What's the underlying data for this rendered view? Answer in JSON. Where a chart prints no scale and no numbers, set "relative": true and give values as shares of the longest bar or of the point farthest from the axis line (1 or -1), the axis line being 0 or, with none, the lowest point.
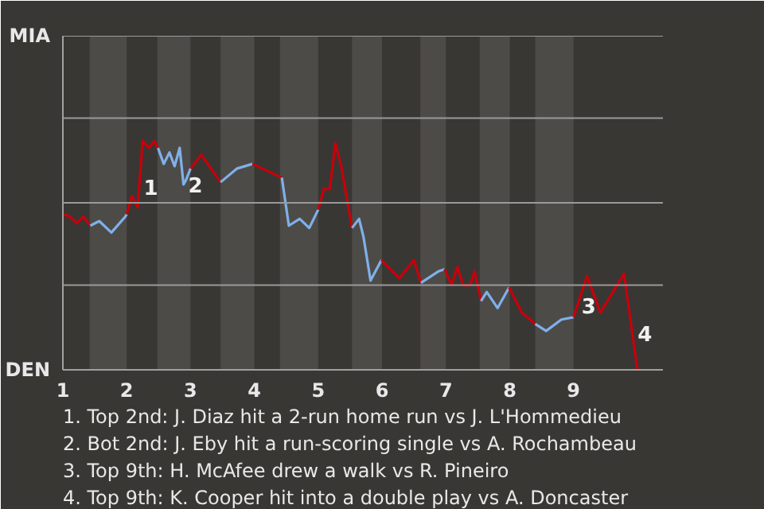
{
  "chart_data": {
    "type": "line",
    "relative": true,
    "xlim": [
      1,
      10.4
    ],
    "xticks": [
      1,
      2,
      3,
      4,
      5,
      6,
      7,
      8,
      9
    ],
    "ref_lines": [
      {
        "axis": "y",
        "value": 0.37,
        "color": "#9a9a9a"
      },
      {
        "axis": "y",
        "value": 0.73,
        "color": "#9a9a9a"
      },
      {
        "axis": "y",
        "value": 1.1,
        "color": "#9a9a9a"
      },
      {
        "axis": "y",
        "value": 1.46,
        "color": "#9a9a9a"
      }
    ],
    "line_style": "solid",
    "bands": [
      {
        "axis": "x",
        "from": 1.42,
        "to": 2.0,
        "color": "#4d4b48"
      },
      {
        "axis": "x",
        "from": 2.48,
        "to": 3.0,
        "color": "#4d4b48"
      },
      {
        "axis": "x",
        "from": 3.47,
        "to": 4.0,
        "color": "#4d4b48"
      },
      {
        "axis": "x",
        "from": 4.4,
        "to": 5.0,
        "color": "#4d4b48"
      },
      {
        "axis": "x",
        "from": 5.53,
        "to": 6.0,
        "color": "#4d4b48"
      },
      {
        "axis": "x",
        "from": 6.6,
        "to": 7.0,
        "color": "#4d4b48"
      },
      {
        "axis": "x",
        "from": 7.53,
        "to": 8.0,
        "color": "#4d4b48"
      },
      {
        "axis": "x",
        "from": 8.4,
        "to": 9.0,
        "color": "#4d4b48"
      }
    ],
    "series": [
      {
        "color": "#c8000a",
        "x": [
          1,
          1.11,
          1.22,
          1.32,
          1.43
        ],
        "values": [
          0.68,
          0.67,
          0.64,
          0.67,
          0.63
        ]
      },
      {
        "color": "#80b0e8",
        "x": [
          1.43,
          1.57,
          1.76,
          1.98,
          2.0
        ],
        "values": [
          0.63,
          0.65,
          0.6,
          0.67,
          0.68
        ]
      },
      {
        "color": "#c8000a",
        "x": [
          2.0,
          2.08,
          2.17,
          2.25,
          2.35,
          2.43,
          2.49
        ],
        "values": [
          0.68,
          0.76,
          0.71,
          1.0,
          0.97,
          1.0,
          0.97
        ]
      },
      {
        "color": "#80b0e8",
        "x": [
          2.49,
          2.58,
          2.67,
          2.75,
          2.83,
          2.89,
          2.93,
          3.0
        ],
        "values": [
          0.97,
          0.9,
          0.95,
          0.89,
          0.97,
          0.81,
          0.83,
          0.88
        ]
      },
      {
        "color": "#c8000a",
        "x": [
          3.0,
          3.17,
          3.47
        ],
        "values": [
          0.88,
          0.94,
          0.82
        ]
      },
      {
        "color": "#80b0e8",
        "x": [
          3.47,
          3.73,
          3.97
        ],
        "values": [
          0.82,
          0.88,
          0.9
        ]
      },
      {
        "color": "#c8000a",
        "x": [
          3.97,
          4.43
        ],
        "values": [
          0.9,
          0.84
        ]
      },
      {
        "color": "#80b0e8",
        "x": [
          4.43,
          4.54,
          4.71,
          4.86,
          5.0
        ],
        "values": [
          0.84,
          0.63,
          0.66,
          0.62,
          0.7
        ]
      },
      {
        "color": "#c8000a",
        "x": [
          5.0,
          5.09,
          5.18,
          5.27,
          5.36,
          5.53
        ],
        "values": [
          0.7,
          0.79,
          0.79,
          0.99,
          0.89,
          0.62
        ]
      },
      {
        "color": "#80b0e8",
        "x": [
          5.53,
          5.64,
          5.71,
          5.82,
          5.99
        ],
        "values": [
          0.62,
          0.66,
          0.58,
          0.39,
          0.48
        ]
      },
      {
        "color": "#c8000a",
        "x": [
          5.99,
          6.27,
          6.5,
          6.61
        ],
        "values": [
          0.48,
          0.4,
          0.48,
          0.38
        ]
      },
      {
        "color": "#80b0e8",
        "x": [
          6.61,
          6.88,
          6.98
        ],
        "values": [
          0.38,
          0.43,
          0.44
        ]
      },
      {
        "color": "#c8000a",
        "x": [
          6.98,
          7.09,
          7.18,
          7.27,
          7.38,
          7.45,
          7.55
        ],
        "values": [
          0.44,
          0.37,
          0.45,
          0.37,
          0.37,
          0.43,
          0.3
        ]
      },
      {
        "color": "#80b0e8",
        "x": [
          7.55,
          7.64,
          7.81,
          7.99
        ],
        "values": [
          0.3,
          0.34,
          0.27,
          0.36
        ]
      },
      {
        "color": "#c8000a",
        "x": [
          7.99,
          8.19,
          8.4
        ],
        "values": [
          0.36,
          0.25,
          0.2
        ]
      },
      {
        "color": "#80b0e8",
        "x": [
          8.4,
          8.57,
          8.81,
          9.0
        ],
        "values": [
          0.2,
          0.17,
          0.22,
          0.23
        ]
      },
      {
        "color": "#c8000a",
        "x": [
          9.0,
          9.21,
          9.42,
          9.79,
          10.0
        ],
        "values": [
          0.23,
          0.41,
          0.25,
          0.42,
          0
        ]
      }
    ],
    "annotations": [
      "MIA",
      "DEN",
      {
        "text": "1",
        "x": 2.19,
        "y": 0.8
      },
      {
        "text": "2",
        "x": 2.89,
        "y": 0.81
      },
      {
        "text": "3",
        "x": 9.05,
        "y": 0.28
      },
      {
        "text": "4",
        "x": 9.93,
        "y": 0.16
      },
      "1. Top 2nd: J. Diaz hit a 2-run home run vs J. L'Hommedieu",
      "2. Bot 2nd: J. Eby hit a run-scoring single vs A. Rochambeau",
      "3. Top 9th: H. McAfee drew a walk vs R. Pineiro",
      "4. Top 9th: K. Cooper hit into a double play vs A. Doncaster"
    ]
  }
}
